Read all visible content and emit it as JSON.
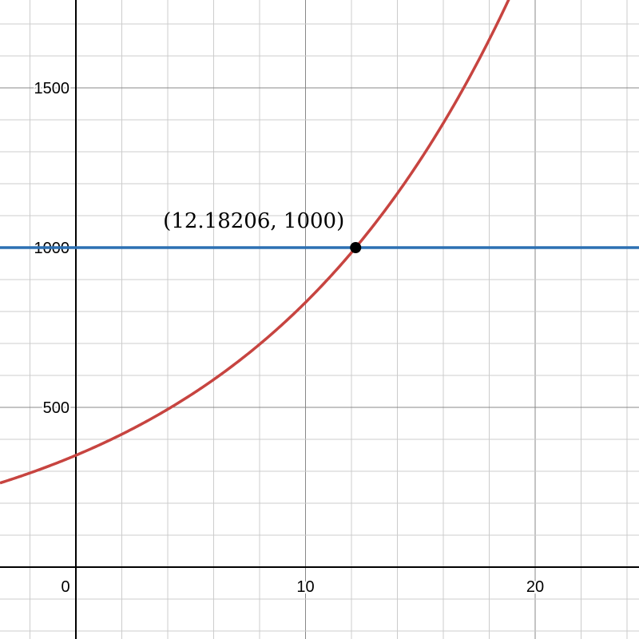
{
  "chart_data": {
    "type": "line",
    "xlim": [
      -3.3,
      24.5
    ],
    "ylim": [
      -225,
      1775
    ],
    "grid": true,
    "x_major_step": 10,
    "x_minor_step": 2,
    "y_major_step": 500,
    "y_minor_step": 100,
    "x_tick_labels": [
      "0",
      "10",
      "20"
    ],
    "y_tick_labels": [
      "500",
      "1000",
      "1500"
    ],
    "series": [
      {
        "kind": "function",
        "a": 350,
        "b": 1.09,
        "color": "#c74440"
      },
      {
        "kind": "horizontal",
        "y": 1000,
        "color": "#2d70b3"
      }
    ],
    "points": [
      {
        "x": 12.18206,
        "y": 1000,
        "label": "(12.18206, 1000)",
        "color": "#000000"
      }
    ]
  }
}
